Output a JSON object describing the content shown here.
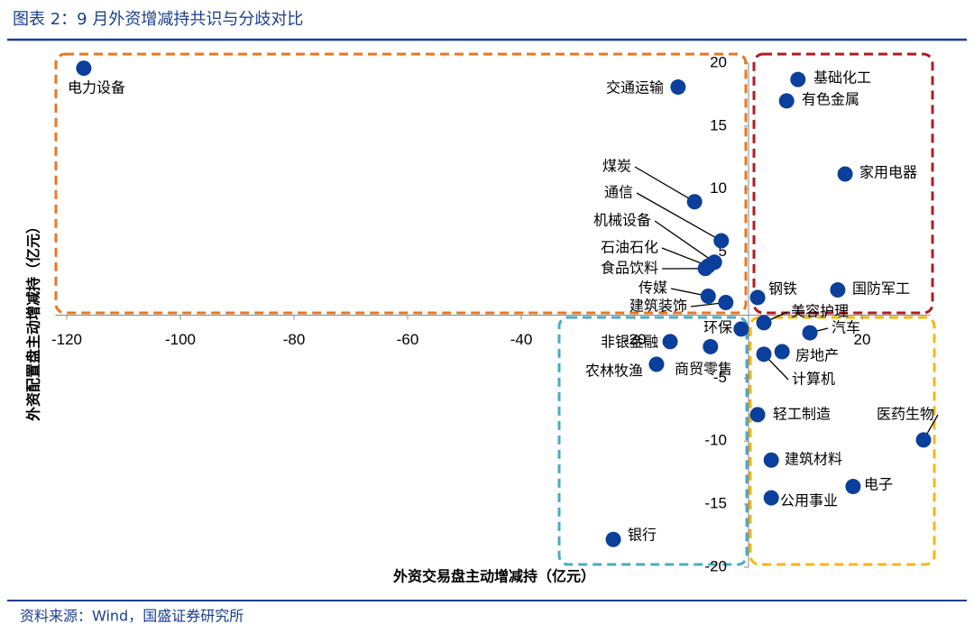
{
  "chart_data": {
    "type": "scatter",
    "title": "图表 2：9 月外资增减持共识与分歧对比",
    "source": "资料来源：Wind，国盛证券研究所",
    "x_label": "外资交易盘主动增减持（亿元）",
    "y_label": "外资配置盘主动增减持（亿元）",
    "color": "#0b3f9c",
    "xlim": [
      -122,
      32
    ],
    "ylim": [
      -20,
      20
    ],
    "xticks": [
      -120,
      -100,
      -80,
      -60,
      -40,
      -20,
      20
    ],
    "yticks": [
      -20,
      -15,
      -10,
      -5,
      5,
      10,
      15,
      20
    ],
    "points": [
      {
        "label": "电力设备",
        "x": -117,
        "y": 19.6
      },
      {
        "label": "交通运输",
        "x": -12.4,
        "y": 18.1
      },
      {
        "label": "基础化工",
        "x": 8.7,
        "y": 18.7
      },
      {
        "label": "有色金属",
        "x": 6.7,
        "y": 17.0
      },
      {
        "label": "家用电器",
        "x": 17.0,
        "y": 11.2
      },
      {
        "label": "煤炭",
        "x": -9.5,
        "y": 9.0
      },
      {
        "label": "通信",
        "x": -4.8,
        "y": 5.9
      },
      {
        "label": "机械设备",
        "x": -6.0,
        "y": 4.2
      },
      {
        "label": "石油石化",
        "x": -7.1,
        "y": 3.9
      },
      {
        "label": "食品饮料",
        "x": -7.6,
        "y": 3.7
      },
      {
        "label": "传媒",
        "x": -7.1,
        "y": 1.5
      },
      {
        "label": "建筑装饰",
        "x": -4.0,
        "y": 1.0
      },
      {
        "label": "钢铁",
        "x": 1.6,
        "y": 1.4
      },
      {
        "label": "国防军工",
        "x": 15.7,
        "y": 2.0
      },
      {
        "label": "美容护理",
        "x": 2.7,
        "y": -0.6
      },
      {
        "label": "汽车",
        "x": 10.8,
        "y": -1.4
      },
      {
        "label": "环保",
        "x": -1.3,
        "y": -1.1
      },
      {
        "label": "房地产",
        "x": 5.9,
        "y": -2.9
      },
      {
        "label": "计算机",
        "x": 2.7,
        "y": -3.1
      },
      {
        "label": "非银金融",
        "x": -13.8,
        "y": -2.1
      },
      {
        "label": "商贸零售",
        "x": -6.7,
        "y": -2.5
      },
      {
        "label": "农林牧渔",
        "x": -16.2,
        "y": -3.9
      },
      {
        "label": "轻工制造",
        "x": 1.6,
        "y": -7.9
      },
      {
        "label": "医药生物",
        "x": 30.8,
        "y": -9.9
      },
      {
        "label": "建筑材料",
        "x": 4.0,
        "y": -11.5
      },
      {
        "label": "电子",
        "x": 18.4,
        "y": -13.6
      },
      {
        "label": "公用事业",
        "x": 4.0,
        "y": -14.5
      },
      {
        "label": "银行",
        "x": -23.8,
        "y": -17.8
      }
    ]
  }
}
